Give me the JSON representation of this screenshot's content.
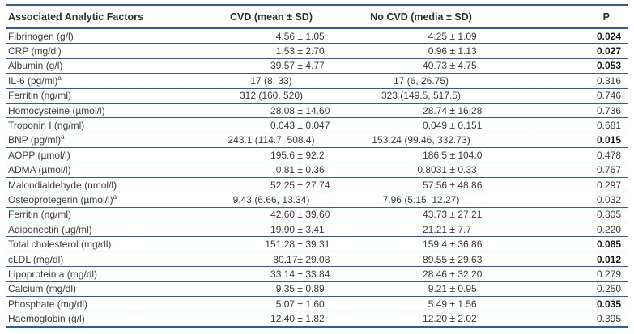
{
  "colors": {
    "rule_blue": "#2b5ca8",
    "text": "#3c3c3c",
    "bold_text": "#161616"
  },
  "table": {
    "columns": {
      "factor": "Associated Analytic Factors",
      "cvd": "CVD (mean ± SD)",
      "no_cvd": "No CVD (media ± SD)",
      "p": "P"
    },
    "rows": [
      {
        "factor": "Fibrinogen (g/l)",
        "sup": "",
        "cvd": "4.56 ± 1.05",
        "no_cvd": "4.25 ± 1.09",
        "p": "0.024",
        "p_bold": true
      },
      {
        "factor": "CRP (mg/dl)",
        "sup": "",
        "cvd": "1.53 ± 2.70",
        "no_cvd": "0.96 ± 1.13",
        "p": "0.027",
        "p_bold": true
      },
      {
        "factor": "Albumin (g/l)",
        "sup": "",
        "cvd": "39.57 ± 4.77",
        "no_cvd": "40.73 ± 4.75",
        "p": "0.053",
        "p_bold": true
      },
      {
        "factor": "IL-6 (pg/ml)",
        "sup": "a",
        "cvd": "17 (8, 33)",
        "no_cvd": "17 (6, 26.75)",
        "p": "0.316",
        "p_bold": false
      },
      {
        "factor": "Ferritin (ng/ml)",
        "sup": "",
        "cvd": "312 (160, 520)",
        "no_cvd": "323 (149.5, 517.5)",
        "p": "0.746",
        "p_bold": false
      },
      {
        "factor": "Homocysteine (µmol/l)",
        "sup": "",
        "cvd": "28.08 ± 14.60",
        "no_cvd": "28.74 ± 16.28",
        "p": "0.736",
        "p_bold": false
      },
      {
        "factor": "Troponin I (ng/ml)",
        "sup": "",
        "cvd": "0.043 ± 0.047",
        "no_cvd": "0.049 ± 0.151",
        "p": "0.681",
        "p_bold": false
      },
      {
        "factor": "BNP (pg/ml)",
        "sup": "a",
        "cvd": "243.1 (114.7, 508.4)",
        "no_cvd": "153.24 (99.46, 332.73)",
        "p": "0.015",
        "p_bold": true
      },
      {
        "factor": "AOPP (µmol/l)",
        "sup": "",
        "cvd": "195.6 ± 92.2",
        "no_cvd": "186.5 ± 104.0",
        "p": "0.478",
        "p_bold": false
      },
      {
        "factor": "ADMA (µmol/l)",
        "sup": "",
        "cvd": "0.81 ± 0.36",
        "no_cvd": "0.8031 ± 0.33",
        "p": "0.767",
        "p_bold": false
      },
      {
        "factor": "Malondialdehyde (nmol/l)",
        "sup": "",
        "cvd": "52.25 ± 27.74",
        "no_cvd": "57.56 ± 48.86",
        "p": "0.297",
        "p_bold": false
      },
      {
        "factor": "Osteoprotegerin (µmol/l)",
        "sup": "a",
        "cvd": "9.43 (6.66, 13.34)",
        "no_cvd": "7.96 (5.15, 12.27)",
        "p": "0.032",
        "p_bold": false
      },
      {
        "factor": "Ferritin (ng/ml)",
        "sup": "",
        "cvd": "42.60 ± 39.60",
        "no_cvd": "43.73 ± 27.21",
        "p": "0.805",
        "p_bold": false
      },
      {
        "factor": "Adiponectin (µg/ml)",
        "sup": "",
        "cvd": "19.90 ± 3.41",
        "no_cvd": "21.21 ± 7.7",
        "p": "0.220",
        "p_bold": false
      },
      {
        "factor": "Total cholesterol (mg/dl)",
        "sup": "",
        "cvd": "151.28 ± 39.31",
        "no_cvd": "159.4 ± 36.86",
        "p": "0.085",
        "p_bold": true
      },
      {
        "factor": "cLDL (mg/dl)",
        "sup": "",
        "cvd": "80.17± 29.08",
        "no_cvd": "89.55 ± 29.63",
        "p": "0.012",
        "p_bold": true
      },
      {
        "factor": "Lipoprotein a (mg/dl)",
        "sup": "",
        "cvd": "33.14 ± 33.84",
        "no_cvd": "28.46 ± 32.20",
        "p": "0.279",
        "p_bold": false
      },
      {
        "factor": "Calcium (mg/dl)",
        "sup": "",
        "cvd": "9.35 ± 0.89",
        "no_cvd": "9.21 ± 0.95",
        "p": "0.250",
        "p_bold": false
      },
      {
        "factor": "Phosphate (mg/dl)",
        "sup": "",
        "cvd": "5.07 ± 1.60",
        "no_cvd": "5.49 ± 1.56",
        "p": "0.035",
        "p_bold": true
      },
      {
        "factor": "Haemoglobin (g/l)",
        "sup": "",
        "cvd": "12.40 ± 1.82",
        "no_cvd": "12.20 ± 2.02",
        "p": "0.395",
        "p_bold": false
      }
    ]
  }
}
